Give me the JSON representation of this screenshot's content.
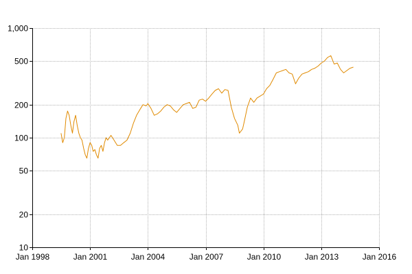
{
  "chart_data": {
    "type": "line",
    "title": "",
    "xlabel": "",
    "ylabel": "",
    "y_scale": "log",
    "ylim": [
      10,
      1000
    ],
    "xlim": [
      "1998-01-01",
      "2016-01-01"
    ],
    "grid": true,
    "x_ticks": [
      {
        "date": "1998-01-01",
        "label": "Jan 1998"
      },
      {
        "date": "2001-01-01",
        "label": "Jan 2001"
      },
      {
        "date": "2004-01-01",
        "label": "Jan 2004"
      },
      {
        "date": "2007-01-01",
        "label": "Jan 2007"
      },
      {
        "date": "2010-01-01",
        "label": "Jan 2010"
      },
      {
        "date": "2013-01-01",
        "label": "Jan 2013"
      },
      {
        "date": "2016-01-01",
        "label": "Jan 2016"
      }
    ],
    "y_ticks": [
      {
        "value": 10,
        "label": "10"
      },
      {
        "value": 20,
        "label": "20"
      },
      {
        "value": 50,
        "label": "50"
      },
      {
        "value": 100,
        "label": "100"
      },
      {
        "value": 200,
        "label": "200"
      },
      {
        "value": 500,
        "label": "500"
      },
      {
        "value": 1000,
        "label": "1,000"
      }
    ],
    "series": [
      {
        "color": "#e08a00",
        "x": [
          "1999-07-01",
          "1999-08-01",
          "1999-09-01",
          "1999-10-01",
          "1999-11-01",
          "1999-12-01",
          "2000-01-01",
          "2000-02-01",
          "2000-03-01",
          "2000-04-01",
          "2000-05-01",
          "2000-06-01",
          "2000-07-01",
          "2000-08-01",
          "2000-09-01",
          "2000-10-01",
          "2000-11-01",
          "2000-12-01",
          "2001-01-01",
          "2001-02-01",
          "2001-03-01",
          "2001-04-01",
          "2001-05-01",
          "2001-06-01",
          "2001-07-01",
          "2001-08-01",
          "2001-09-01",
          "2001-10-01",
          "2001-11-01",
          "2001-12-01",
          "2002-02-01",
          "2002-04-01",
          "2002-06-01",
          "2002-08-01",
          "2002-10-01",
          "2002-12-01",
          "2003-02-01",
          "2003-04-01",
          "2003-06-01",
          "2003-08-01",
          "2003-10-01",
          "2003-12-01",
          "2004-01-01",
          "2004-03-01",
          "2004-05-01",
          "2004-07-01",
          "2004-09-01",
          "2004-11-01",
          "2005-01-01",
          "2005-03-01",
          "2005-05-01",
          "2005-07-01",
          "2005-09-01",
          "2005-11-01",
          "2006-01-01",
          "2006-03-01",
          "2006-05-01",
          "2006-07-01",
          "2006-09-01",
          "2006-11-01",
          "2007-01-01",
          "2007-03-01",
          "2007-05-01",
          "2007-07-01",
          "2007-09-01",
          "2007-11-01",
          "2008-01-01",
          "2008-03-01",
          "2008-05-01",
          "2008-07-01",
          "2008-09-01",
          "2008-10-01",
          "2008-11-01",
          "2008-12-01",
          "2009-01-01",
          "2009-03-01",
          "2009-05-01",
          "2009-07-01",
          "2009-09-01",
          "2009-11-01",
          "2010-01-01",
          "2010-03-01",
          "2010-05-01",
          "2010-07-01",
          "2010-09-01",
          "2010-11-01",
          "2011-01-01",
          "2011-03-01",
          "2011-05-01",
          "2011-07-01",
          "2011-09-01",
          "2011-11-01",
          "2012-01-01",
          "2012-03-01",
          "2012-05-01",
          "2012-07-01",
          "2012-09-01",
          "2012-11-01",
          "2013-01-01",
          "2013-03-01",
          "2013-05-01",
          "2013-07-01",
          "2013-09-01",
          "2013-11-01",
          "2014-01-01",
          "2014-03-01",
          "2014-05-01",
          "2014-07-01",
          "2014-09-01"
        ],
        "y": [
          110,
          90,
          100,
          150,
          175,
          160,
          130,
          110,
          140,
          160,
          130,
          110,
          100,
          95,
          80,
          70,
          65,
          80,
          90,
          85,
          75,
          78,
          70,
          65,
          80,
          85,
          75,
          90,
          100,
          95,
          105,
          95,
          85,
          85,
          90,
          95,
          110,
          135,
          160,
          180,
          200,
          195,
          205,
          185,
          160,
          165,
          175,
          190,
          200,
          195,
          180,
          170,
          185,
          200,
          205,
          210,
          185,
          190,
          220,
          225,
          215,
          230,
          250,
          270,
          280,
          255,
          275,
          270,
          190,
          150,
          130,
          110,
          115,
          120,
          140,
          190,
          230,
          210,
          230,
          240,
          250,
          280,
          300,
          340,
          390,
          400,
          410,
          420,
          390,
          380,
          310,
          350,
          380,
          390,
          400,
          420,
          430,
          450,
          480,
          500,
          540,
          560,
          470,
          480,
          420,
          390,
          410,
          430,
          440
        ]
      }
    ]
  }
}
